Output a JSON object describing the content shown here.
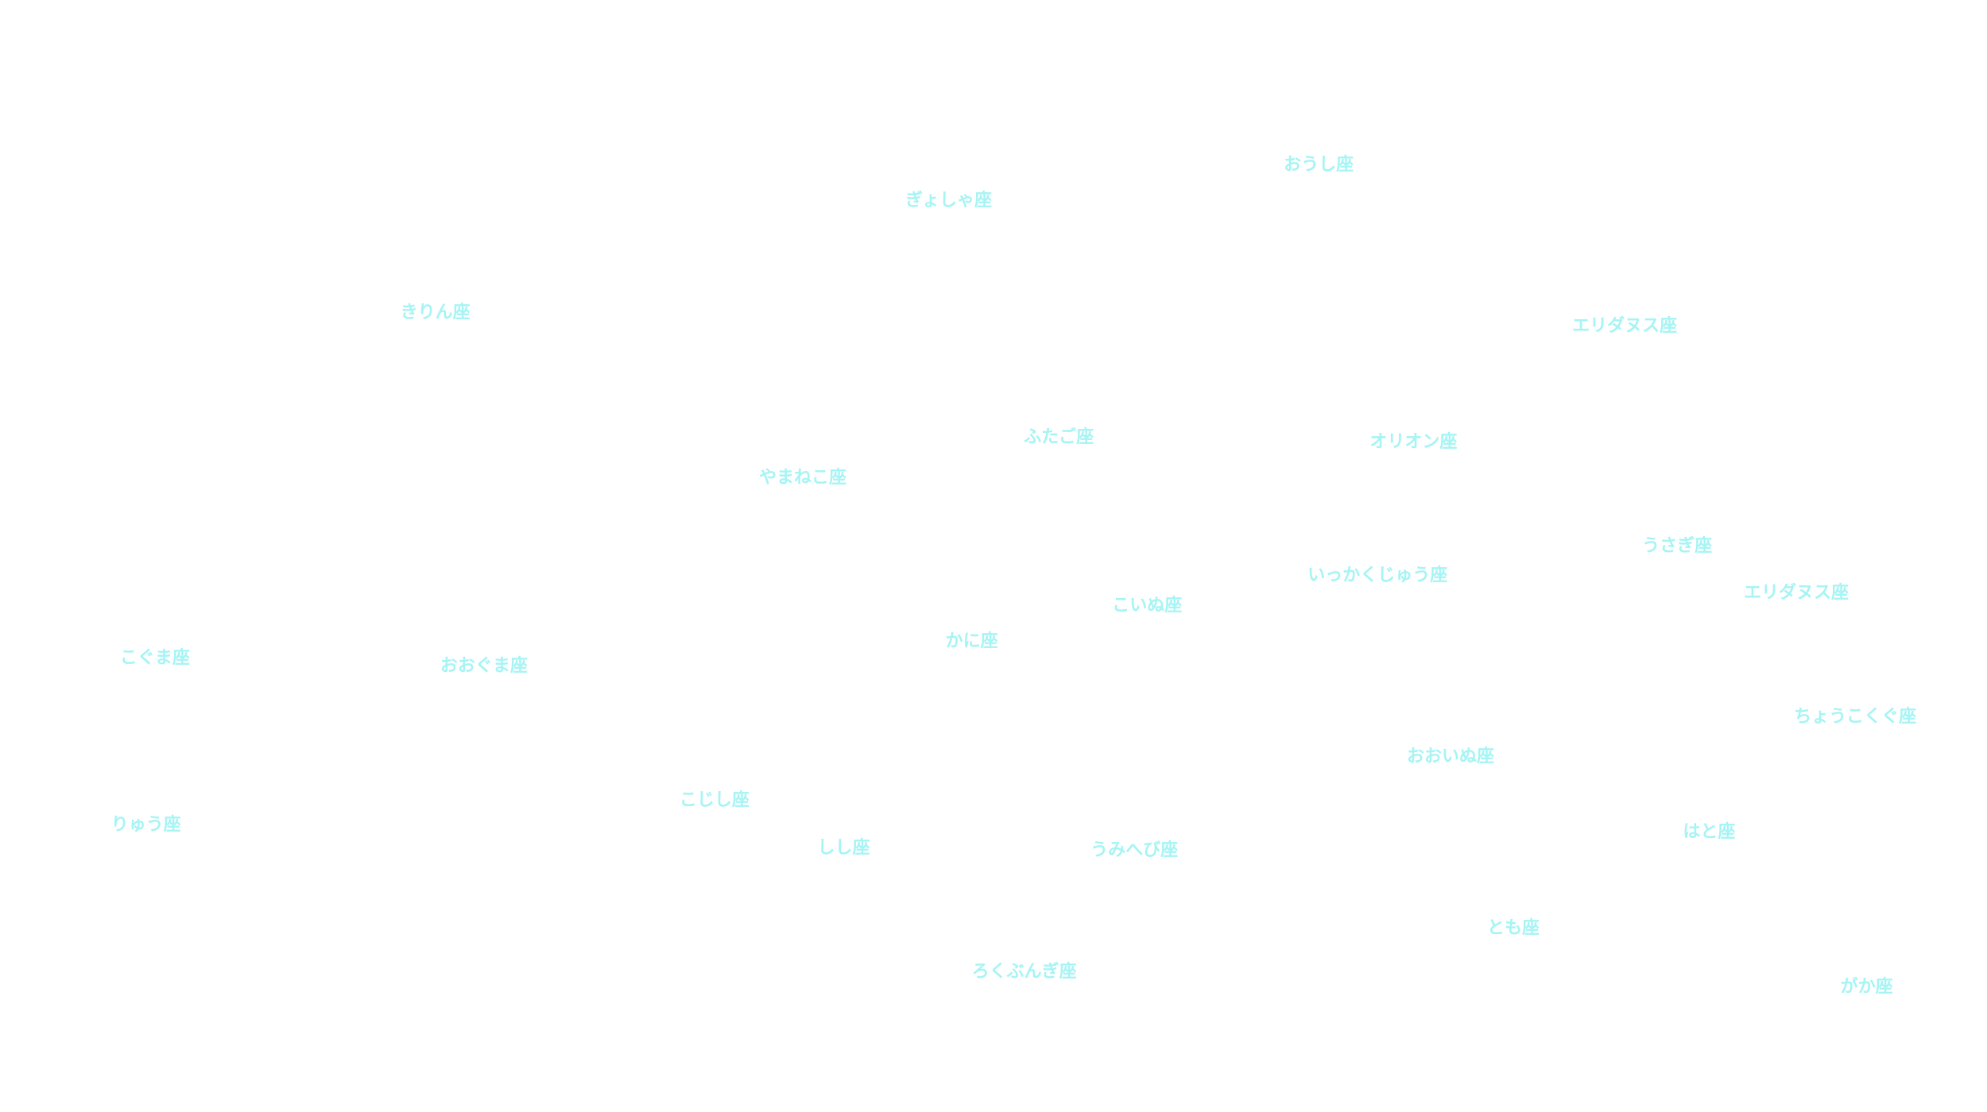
{
  "labels": [
    "おうし座",
    "ぎょしゃ座",
    "きりん座",
    "エリダヌス座",
    "ふたご座",
    "オリオン座",
    "やまねこ座",
    "うさぎ座",
    "いっかくじゅう座",
    "エリダヌス座",
    "こいぬ座",
    "かに座",
    "こぐま座",
    "おおぐま座",
    "ちょうこくぐ座",
    "おおいぬ座",
    "こじし座",
    "りゅう座",
    "はと座",
    "しし座",
    "うみへび座",
    "とも座",
    "ろくぶんぎ座",
    "がか座"
  ]
}
